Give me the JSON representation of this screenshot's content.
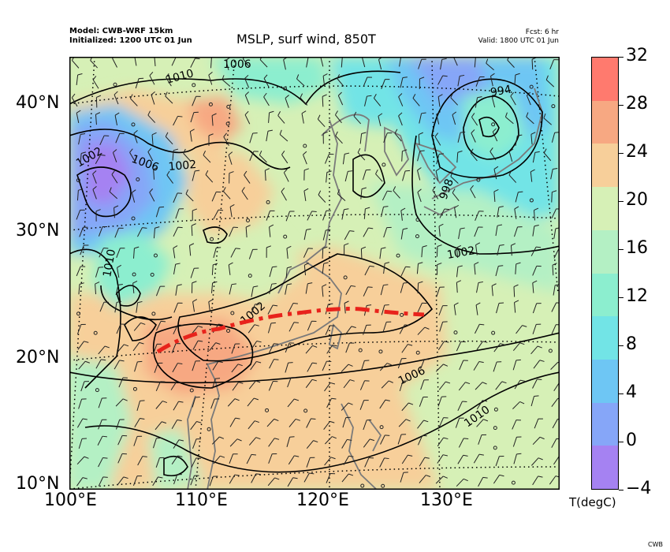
{
  "header": {
    "model": "Model: CWB-WRF 15km",
    "initialized": "Initialized: 1200 UTC 01 Jun",
    "title": "MSLP, surf wind, 850T",
    "fcst": "Fcst: 6 hr",
    "valid": "Valid: 1800 UTC 01 Jun"
  },
  "map": {
    "lat_labels": [
      "40°N",
      "30°N",
      "20°N",
      "10°N"
    ],
    "lon_labels": [
      "100°E",
      "110°E",
      "120°E",
      "130°E"
    ],
    "isobar_labels": [
      "1006",
      "1010",
      "994",
      "1002",
      "1006",
      "1002",
      "998",
      "1010",
      "1002",
      "1002",
      "1006",
      "1010"
    ],
    "front_color": "#e8231c"
  },
  "colorbar": {
    "ticks": [
      "32",
      "28",
      "24",
      "20",
      "16",
      "12",
      "8",
      "4",
      "0",
      "−4"
    ],
    "unit": "T(degC)",
    "colors": [
      "#ff7a6e",
      "#f7a882",
      "#f7cf9a",
      "#d6f0b6",
      "#b4f0c4",
      "#8ceecf",
      "#72e4e6",
      "#6ec6f4",
      "#86a6f8",
      "#a582f2"
    ]
  },
  "footer": {
    "credit": "CWB"
  }
}
